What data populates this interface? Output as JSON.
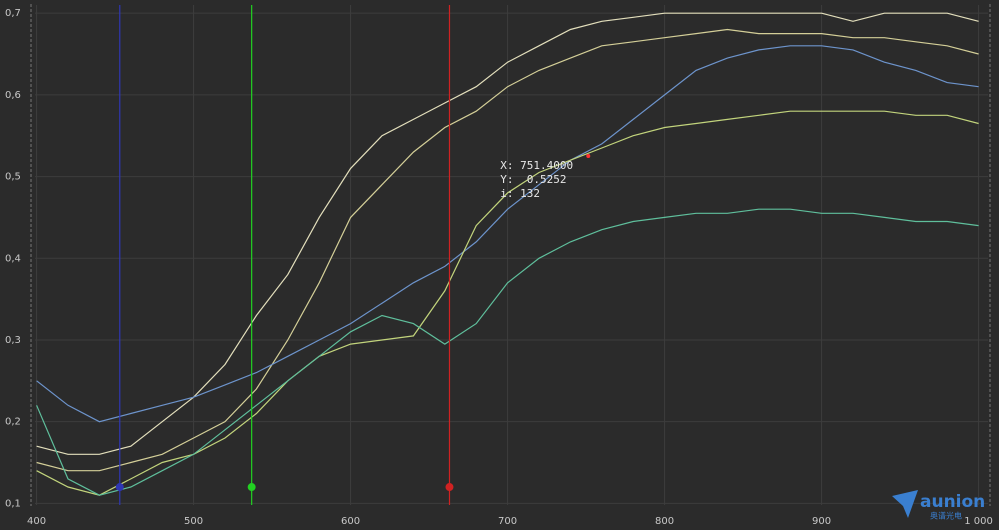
{
  "chart_data": {
    "type": "line",
    "x": [
      400,
      420,
      440,
      460,
      480,
      500,
      520,
      540,
      560,
      580,
      600,
      620,
      640,
      660,
      680,
      700,
      720,
      740,
      760,
      780,
      800,
      820,
      840,
      860,
      880,
      900,
      920,
      940,
      960,
      980,
      1000
    ],
    "series": [
      {
        "color": "#e3dfbc",
        "values": [
          0.17,
          0.16,
          0.16,
          0.17,
          0.2,
          0.23,
          0.27,
          0.33,
          0.38,
          0.45,
          0.51,
          0.55,
          0.57,
          0.59,
          0.61,
          0.64,
          0.66,
          0.68,
          0.69,
          0.695,
          0.7,
          0.7,
          0.7,
          0.7,
          0.7,
          0.7,
          0.69,
          0.7,
          0.7,
          0.7,
          0.69
        ]
      },
      {
        "color": "#d4cf98",
        "values": [
          0.15,
          0.14,
          0.14,
          0.15,
          0.16,
          0.18,
          0.2,
          0.24,
          0.3,
          0.37,
          0.45,
          0.49,
          0.53,
          0.56,
          0.58,
          0.61,
          0.63,
          0.645,
          0.66,
          0.665,
          0.67,
          0.675,
          0.68,
          0.675,
          0.675,
          0.675,
          0.67,
          0.67,
          0.665,
          0.66,
          0.65
        ]
      },
      {
        "color": "#6d94cc",
        "values": [
          0.25,
          0.22,
          0.2,
          0.21,
          0.22,
          0.23,
          0.245,
          0.26,
          0.28,
          0.3,
          0.32,
          0.345,
          0.37,
          0.39,
          0.42,
          0.46,
          0.49,
          0.52,
          0.54,
          0.57,
          0.6,
          0.63,
          0.645,
          0.655,
          0.66,
          0.66,
          0.655,
          0.64,
          0.63,
          0.615,
          0.61
        ]
      },
      {
        "color": "#c2d47c",
        "values": [
          0.14,
          0.12,
          0.11,
          0.13,
          0.15,
          0.16,
          0.18,
          0.21,
          0.25,
          0.28,
          0.295,
          0.3,
          0.305,
          0.36,
          0.44,
          0.48,
          0.505,
          0.52,
          0.535,
          0.55,
          0.56,
          0.565,
          0.57,
          0.575,
          0.58,
          0.58,
          0.58,
          0.58,
          0.575,
          0.575,
          0.565
        ]
      },
      {
        "color": "#5fbf9c",
        "values": [
          0.22,
          0.13,
          0.11,
          0.12,
          0.14,
          0.16,
          0.19,
          0.22,
          0.25,
          0.28,
          0.31,
          0.33,
          0.32,
          0.295,
          0.32,
          0.37,
          0.4,
          0.42,
          0.435,
          0.445,
          0.45,
          0.455,
          0.455,
          0.46,
          0.46,
          0.455,
          0.455,
          0.45,
          0.445,
          0.445,
          0.44
        ]
      }
    ],
    "xlim": [
      399,
      1006
    ],
    "ylim": [
      0.098,
      0.71
    ],
    "xticks": [
      400,
      500,
      600,
      700,
      800,
      900,
      {
        "value": 1000,
        "label": "1 000"
      }
    ],
    "yticks": [
      {
        "value": 0.1,
        "label": "0,1"
      },
      {
        "value": 0.2,
        "label": "0,2"
      },
      {
        "value": 0.3,
        "label": "0,3"
      },
      {
        "value": 0.4,
        "label": "0,4"
      },
      {
        "value": 0.5,
        "label": "0,5"
      },
      {
        "value": 0.6,
        "label": "0,6"
      },
      {
        "value": 0.7,
        "label": "0,7"
      }
    ],
    "grid": true,
    "markers": [
      {
        "x": 453,
        "y": 0.12,
        "color": "#2f37b4"
      },
      {
        "x": 537,
        "y": 0.12,
        "color": "#22d022"
      },
      {
        "x": 663,
        "y": 0.12,
        "color": "#d02222"
      }
    ],
    "tooltip": {
      "x": 751.4,
      "y": 0.5252,
      "color": "#ff3030",
      "lines": [
        "X: 751.4000",
        "Y:  0.5252",
        "i: 132"
      ]
    },
    "logo": {
      "name": "aunion",
      "subtitle": "奥谱光电"
    }
  }
}
